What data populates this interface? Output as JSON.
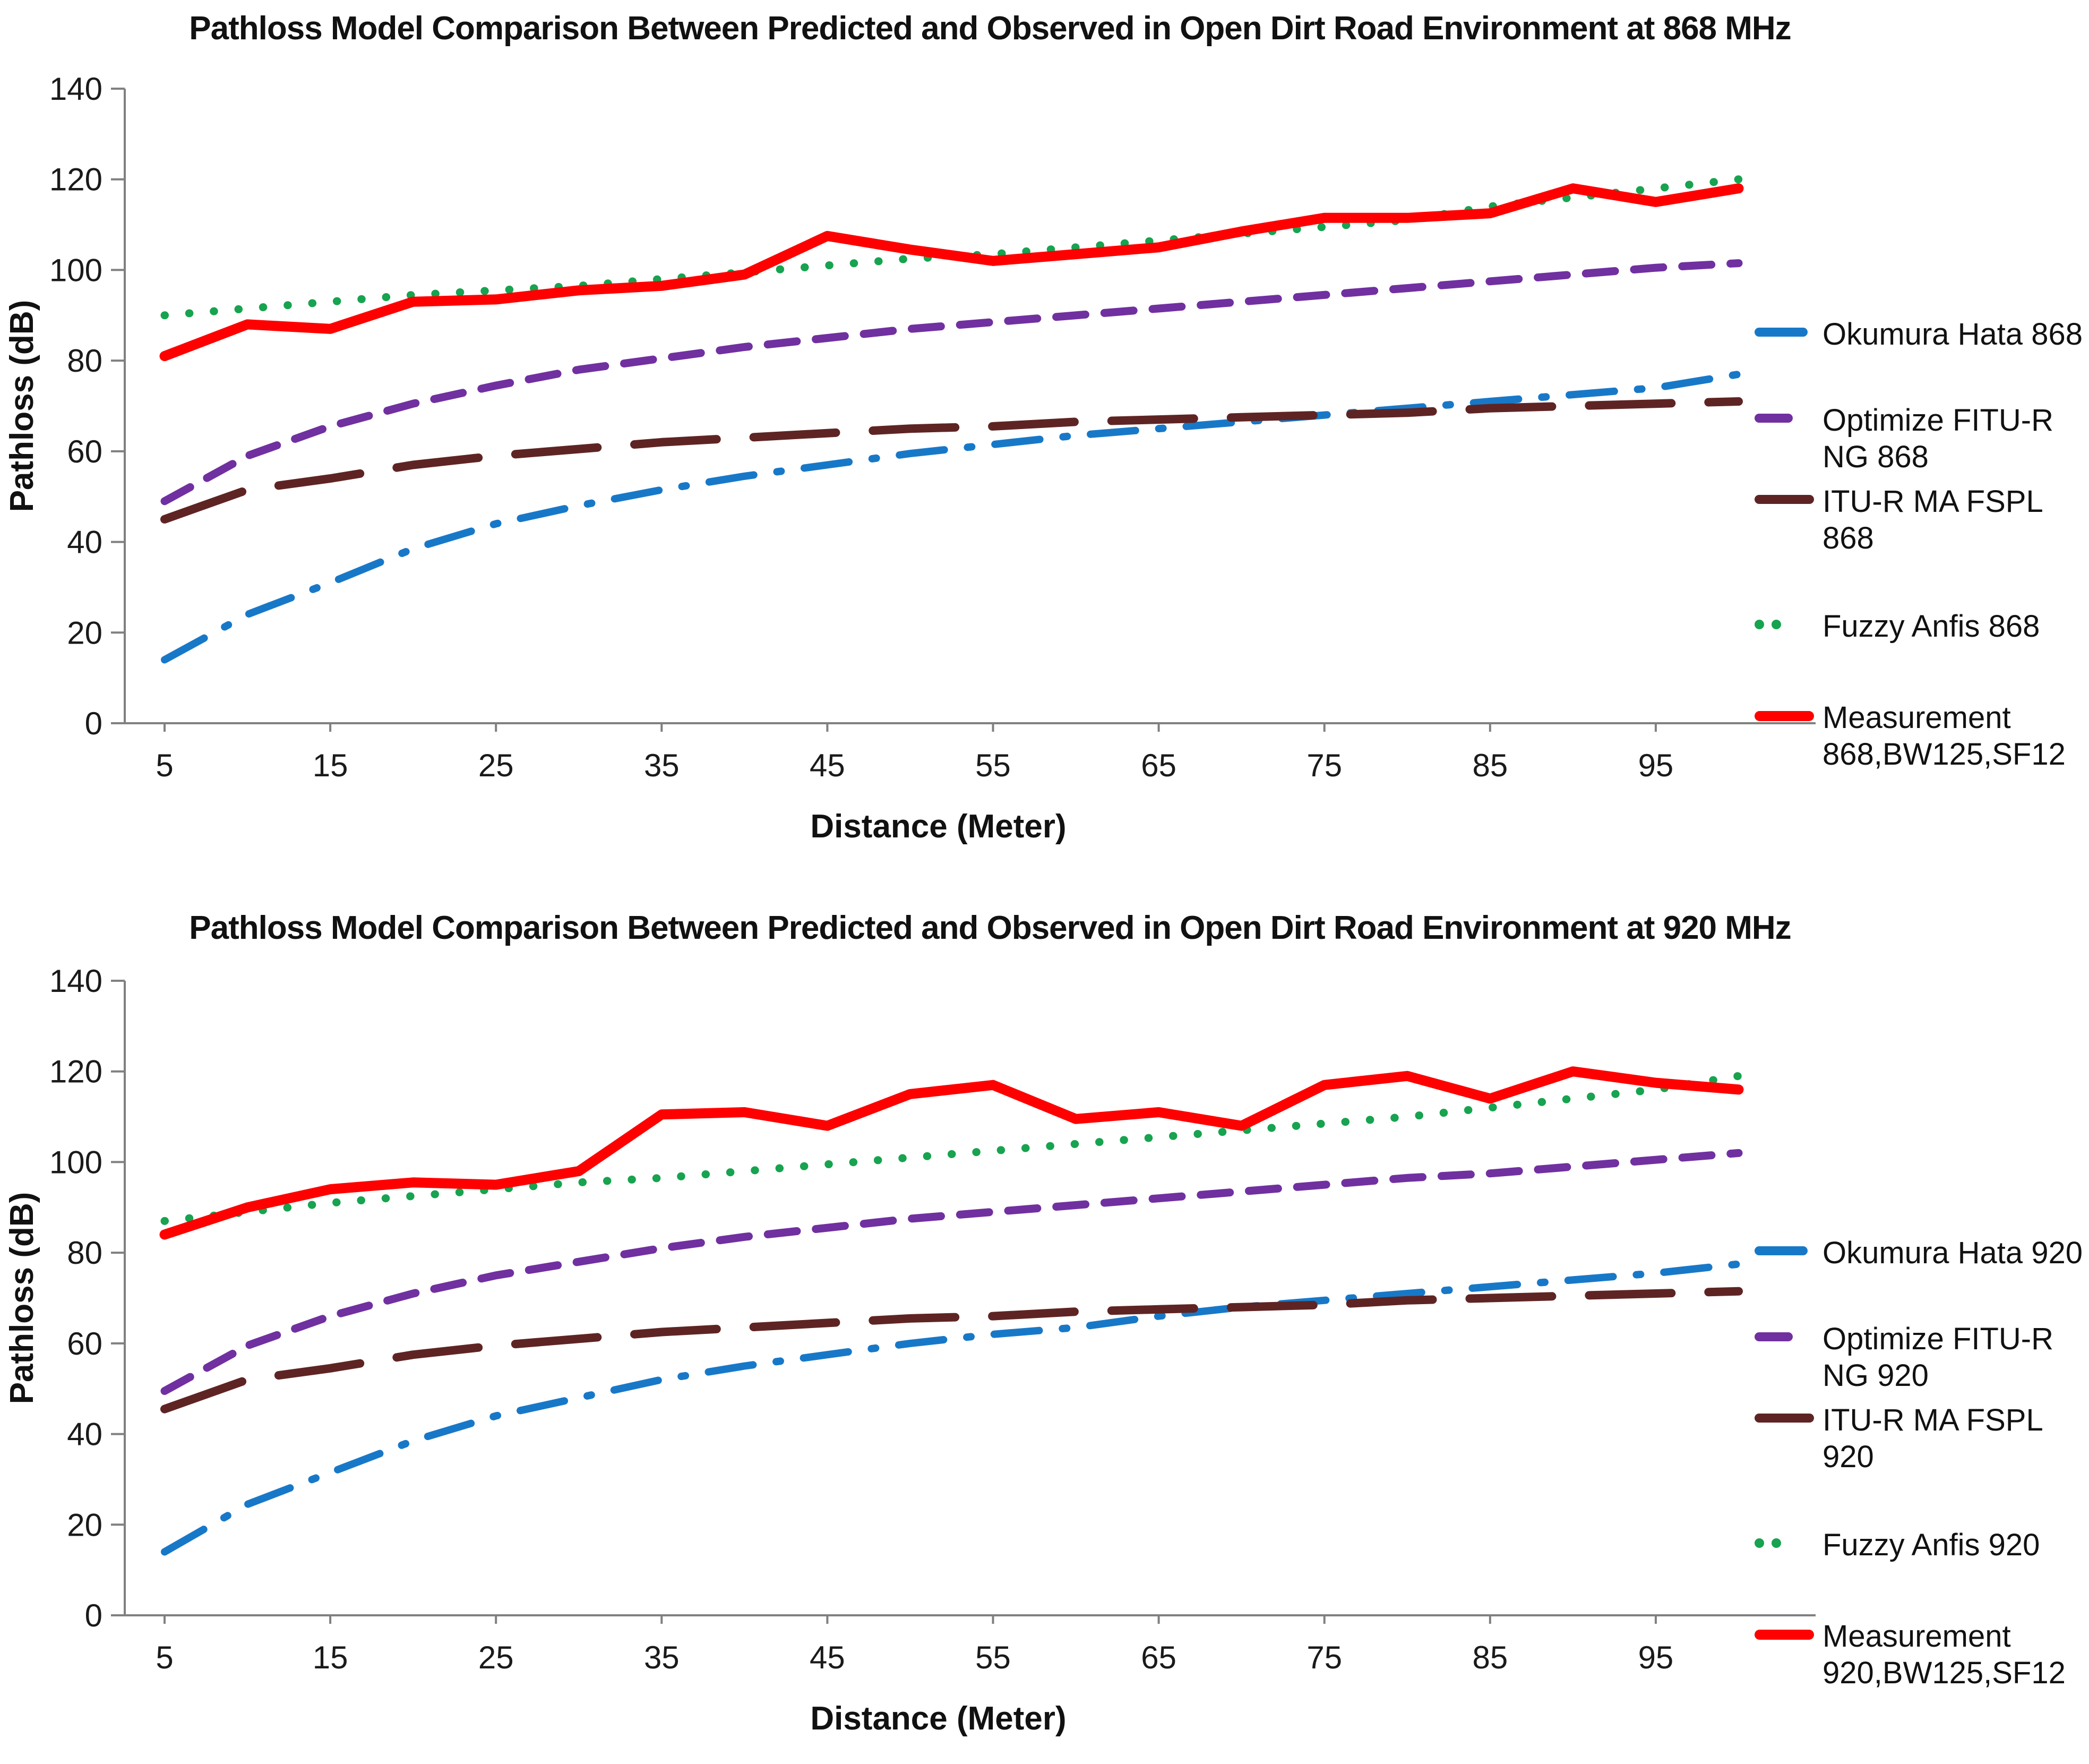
{
  "chart_data": [
    {
      "type": "line",
      "title": "Pathloss Model Comparison Between Predicted and Observed in Open Dirt Road Environment at 868 MHz",
      "xlabel": "Distance (Meter)",
      "ylabel": "Pathloss (dB)",
      "x_ticks": [
        5,
        15,
        25,
        35,
        45,
        55,
        65,
        75,
        85,
        95
      ],
      "y_ticks": [
        0,
        20,
        40,
        60,
        80,
        100,
        120,
        140
      ],
      "ylim": [
        0,
        140
      ],
      "xlim": [
        5,
        100
      ],
      "grid": false,
      "legend_position": "right",
      "x": [
        5,
        10,
        15,
        20,
        25,
        30,
        35,
        40,
        45,
        50,
        55,
        60,
        65,
        70,
        75,
        80,
        85,
        90,
        95,
        100
      ],
      "series": [
        {
          "name": "Okumura Hata 868",
          "color": "#1878C8",
          "style": "dashdot",
          "values": [
            14,
            24,
            31,
            38.5,
            44,
            48,
            51.5,
            54.5,
            57,
            59.5,
            61.5,
            63.5,
            65,
            66.5,
            68,
            69.5,
            71,
            72.5,
            74,
            77
          ]
        },
        {
          "name": "Optimize FITU-R NG 868",
          "color": "#7030A0",
          "style": "dash",
          "values": [
            49,
            59,
            65.5,
            70.5,
            74.5,
            78,
            80.5,
            83,
            85,
            87,
            88.5,
            90,
            91.5,
            93,
            94.5,
            96,
            97.5,
            99,
            100.5,
            101.5
          ]
        },
        {
          "name": "ITU-R MA FSPL 868",
          "color": "#5E2423",
          "style": "longdash",
          "values": [
            45,
            51.5,
            54,
            57,
            59,
            60.5,
            62,
            63,
            64,
            65,
            65.5,
            66.5,
            67,
            67.5,
            68,
            68.5,
            69.5,
            70,
            70.5,
            71
          ]
        },
        {
          "name": "Fuzzy Anfis 868",
          "color": "#17A34F",
          "style": "dot",
          "values": [
            90,
            91.5,
            93,
            94.5,
            95.5,
            96.5,
            98,
            99.5,
            101,
            102.5,
            103.5,
            105,
            106.5,
            108,
            109.5,
            111,
            114,
            116,
            118,
            120
          ]
        },
        {
          "name": "Measurement 868,BW125,SF12",
          "color": "#FE0000",
          "style": "solid",
          "values": [
            81,
            88,
            87,
            93,
            93.5,
            95.5,
            96.5,
            99,
            107.5,
            104.5,
            102,
            103.5,
            105,
            108.5,
            111.5,
            111.5,
            112.5,
            118,
            115,
            118
          ]
        }
      ]
    },
    {
      "type": "line",
      "title": "Pathloss Model Comparison Between Predicted and Observed in Open Dirt Road Environment at 920 MHz",
      "xlabel": "Distance (Meter)",
      "ylabel": "Pathloss (dB)",
      "x_ticks": [
        5,
        15,
        25,
        35,
        45,
        55,
        65,
        75,
        85,
        95
      ],
      "y_ticks": [
        0,
        20,
        40,
        60,
        80,
        100,
        120,
        140
      ],
      "ylim": [
        0,
        140
      ],
      "xlim": [
        5,
        100
      ],
      "grid": false,
      "legend_position": "right",
      "x": [
        5,
        10,
        15,
        20,
        25,
        30,
        35,
        40,
        45,
        50,
        55,
        60,
        65,
        70,
        75,
        80,
        85,
        90,
        95,
        100
      ],
      "series": [
        {
          "name": "Okumura Hata 920",
          "color": "#1878C8",
          "style": "dashdot",
          "values": [
            14,
            24.5,
            31.5,
            38.5,
            44,
            48,
            52,
            55,
            57.5,
            60,
            62,
            63.5,
            66,
            68,
            69.5,
            71,
            72.5,
            74,
            75.5,
            77.5
          ]
        },
        {
          "name": "Optimize FITU-R NG 920",
          "color": "#7030A0",
          "style": "dash",
          "values": [
            49.5,
            59.5,
            66,
            71,
            75,
            78,
            81,
            83.5,
            85.5,
            87.5,
            89,
            90.5,
            92,
            93.5,
            95,
            96.5,
            97.5,
            99,
            100.5,
            102
          ]
        },
        {
          "name": "ITU-R MA FSPL 920",
          "color": "#5E2423",
          "style": "longdash",
          "values": [
            45.5,
            52,
            54.5,
            57.5,
            59.5,
            61,
            62.5,
            63.5,
            64.5,
            65.5,
            66,
            67,
            67.5,
            68,
            68.5,
            69.5,
            70,
            70.5,
            71,
            71.5
          ]
        },
        {
          "name": "Fuzzy Anfis 920",
          "color": "#17A34F",
          "style": "dot",
          "values": [
            87,
            89,
            91,
            92.5,
            94,
            95.5,
            96.5,
            98,
            99.5,
            101,
            102.5,
            104,
            105.5,
            107,
            108.5,
            110,
            112,
            114,
            116,
            119
          ]
        },
        {
          "name": "Measurement 920,BW125,SF12",
          "color": "#FE0000",
          "style": "solid",
          "values": [
            84,
            90,
            94,
            95.5,
            95,
            98,
            110.5,
            111,
            108,
            115,
            117,
            109.5,
            111,
            108,
            117,
            119,
            114,
            120,
            117.5,
            116
          ]
        }
      ]
    }
  ],
  "style_meta": {
    "axis_color": "#808080",
    "tick_label_color": "#1a1a1a",
    "title_color": "#111111"
  }
}
